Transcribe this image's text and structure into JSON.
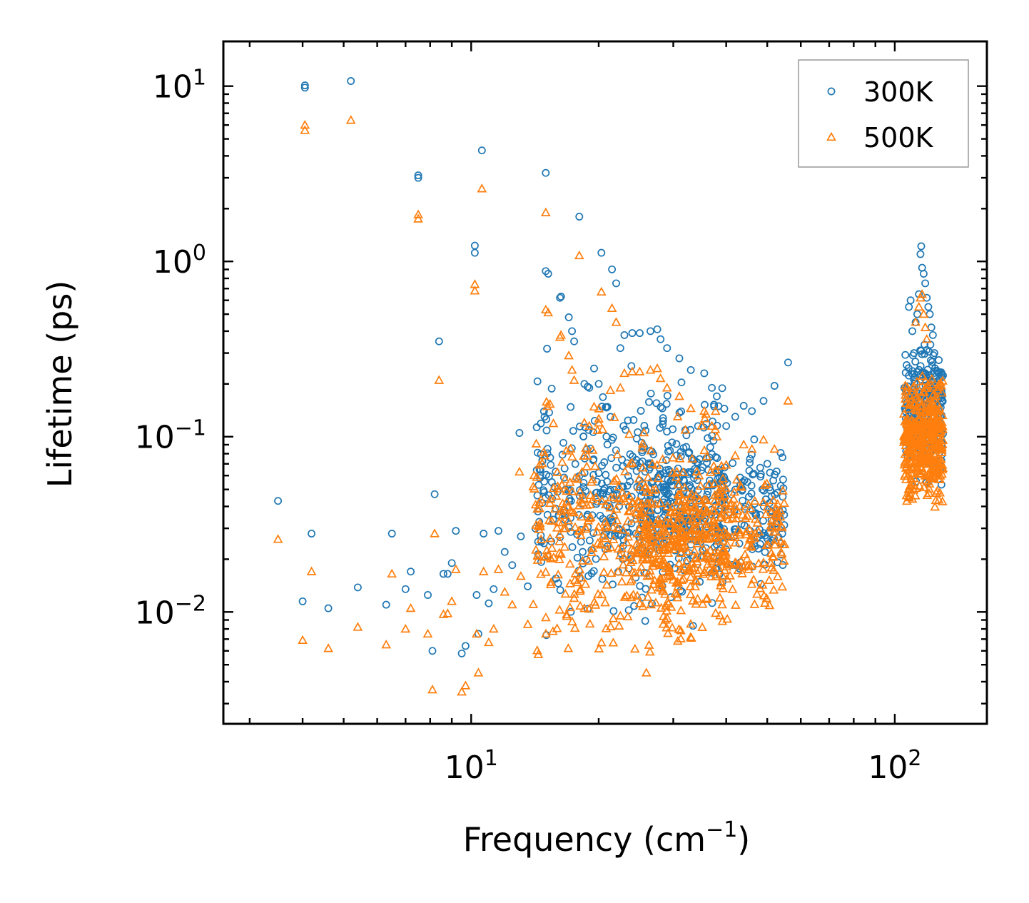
{
  "chart_data": {
    "type": "scatter",
    "xscale": "log",
    "yscale": "log",
    "xlim": [
      2.6,
      165
    ],
    "ylim": [
      0.0023,
      18
    ],
    "xlabel": "Frequency (cm",
    "xlabel_sup": "−1",
    "xlabel_suffix": ")",
    "ylabel": "Lifetime (ps)",
    "x_ticks": [
      {
        "value": 10,
        "base": "10",
        "exp": "1"
      },
      {
        "value": 100,
        "base": "10",
        "exp": "2"
      }
    ],
    "y_ticks": [
      {
        "value": 10,
        "base": "10",
        "exp": "1"
      },
      {
        "value": 1,
        "base": "10",
        "exp": "0"
      },
      {
        "value": 0.1,
        "base": "10",
        "exp": "−1"
      },
      {
        "value": 0.01,
        "base": "10",
        "exp": "−2"
      }
    ],
    "legend_position": "top-right",
    "series": [
      {
        "name": "300K",
        "marker": "circle",
        "color": "#1f77b4",
        "points": [
          [
            3.5,
            0.043
          ],
          [
            4.0,
            0.0115
          ],
          [
            4.05,
            9.8
          ],
          [
            4.05,
            10.1
          ],
          [
            4.2,
            0.028
          ],
          [
            4.6,
            0.0105
          ],
          [
            5.2,
            10.7
          ],
          [
            5.4,
            0.0138
          ],
          [
            6.3,
            0.011
          ],
          [
            6.5,
            0.028
          ],
          [
            7.0,
            0.0135
          ],
          [
            7.2,
            0.017
          ],
          [
            7.5,
            3.0
          ],
          [
            7.5,
            3.1
          ],
          [
            7.9,
            0.0125
          ],
          [
            8.1,
            0.006
          ],
          [
            8.2,
            0.047
          ],
          [
            8.4,
            0.35
          ],
          [
            8.6,
            0.0165
          ],
          [
            8.8,
            0.0165
          ],
          [
            9.0,
            0.019
          ],
          [
            9.2,
            0.029
          ],
          [
            9.5,
            0.0058
          ],
          [
            9.7,
            0.0064
          ],
          [
            10.2,
            1.12
          ],
          [
            10.2,
            1.23
          ],
          [
            10.3,
            0.0125
          ],
          [
            10.4,
            0.0075
          ],
          [
            10.6,
            4.3
          ],
          [
            10.7,
            0.028
          ],
          [
            11.0,
            0.0112
          ],
          [
            11.3,
            0.0135
          ],
          [
            11.6,
            0.029
          ],
          [
            12.0,
            0.022
          ],
          [
            12.5,
            0.0185
          ],
          [
            13.0,
            0.105
          ],
          [
            13.1,
            0.027
          ],
          [
            13.6,
            0.014
          ],
          [
            14.5,
            0.065
          ],
          [
            14.9,
            0.13
          ],
          [
            15.0,
            3.2
          ],
          [
            15.0,
            0.88
          ],
          [
            15.2,
            0.85
          ],
          [
            15.5,
            0.055
          ],
          [
            16.2,
            0.62
          ],
          [
            16.3,
            0.63
          ],
          [
            16.7,
            0.05
          ],
          [
            17.0,
            0.48
          ],
          [
            17.3,
            0.4
          ],
          [
            17.5,
            0.35
          ],
          [
            18.0,
            1.8
          ],
          [
            18.5,
            0.2
          ],
          [
            19.0,
            0.19
          ],
          [
            19.5,
            0.245
          ],
          [
            20.0,
            0.2
          ],
          [
            20.3,
            1.12
          ],
          [
            21.5,
            0.9
          ],
          [
            22.0,
            0.75
          ],
          [
            22.5,
            0.32
          ],
          [
            23.0,
            0.38
          ],
          [
            24.0,
            0.39
          ],
          [
            25.0,
            0.39
          ],
          [
            26.5,
            0.4
          ],
          [
            27.5,
            0.41
          ],
          [
            28.0,
            0.36
          ],
          [
            29.0,
            0.32
          ],
          [
            31.0,
            0.28
          ],
          [
            33.0,
            0.24
          ],
          [
            35.5,
            0.23
          ],
          [
            37.0,
            0.19
          ],
          [
            38.0,
            0.17
          ],
          [
            40.0,
            0.115
          ],
          [
            42.0,
            0.13
          ],
          [
            44.0,
            0.15
          ],
          [
            46.0,
            0.14
          ],
          [
            49.0,
            0.16
          ],
          [
            52.0,
            0.195
          ],
          [
            56.0,
            0.265
          ],
          [
            108,
            0.55
          ],
          [
            109,
            0.6
          ],
          [
            110,
            0.4
          ],
          [
            111,
            0.3
          ],
          [
            112,
            0.45
          ],
          [
            113,
            0.5
          ],
          [
            114,
            0.65
          ],
          [
            115,
            1.1
          ],
          [
            115.5,
            1.22
          ],
          [
            116,
            0.92
          ],
          [
            117,
            0.85
          ],
          [
            118,
            0.75
          ],
          [
            119,
            0.62
          ],
          [
            120,
            0.55
          ],
          [
            121,
            0.5
          ],
          [
            122,
            0.42
          ],
          [
            123,
            0.38
          ],
          [
            124,
            0.3
          ],
          [
            125,
            0.22
          ],
          [
            126,
            0.18
          ],
          [
            127,
            0.15
          ],
          [
            128,
            0.12
          ]
        ],
        "clusters": [
          {
            "xr": [
              14,
              40
            ],
            "yr": [
              0.006,
              0.35
            ],
            "n": 420,
            "seed": 11
          },
          {
            "xr": [
              25,
              55
            ],
            "yr": [
              0.012,
              0.12
            ],
            "n": 320,
            "seed": 12
          },
          {
            "xr": [
              105,
              130
            ],
            "yr": [
              0.045,
              0.45
            ],
            "n": 260,
            "seed": 13
          }
        ]
      },
      {
        "name": "500K",
        "marker": "triangle",
        "color": "#ff7f0e",
        "points": [
          [
            3.5,
            0.026
          ],
          [
            4.0,
            0.0069
          ],
          [
            4.05,
            5.6
          ],
          [
            4.05,
            6.0
          ],
          [
            4.2,
            0.017
          ],
          [
            4.6,
            0.0062
          ],
          [
            5.2,
            6.4
          ],
          [
            5.4,
            0.0082
          ],
          [
            6.3,
            0.0065
          ],
          [
            6.5,
            0.0165
          ],
          [
            7.0,
            0.008
          ],
          [
            7.2,
            0.0105
          ],
          [
            7.5,
            1.75
          ],
          [
            7.5,
            1.85
          ],
          [
            7.9,
            0.0075
          ],
          [
            8.1,
            0.0036
          ],
          [
            8.2,
            0.028
          ],
          [
            8.4,
            0.21
          ],
          [
            8.6,
            0.0097
          ],
          [
            8.8,
            0.0098
          ],
          [
            9.0,
            0.0115
          ],
          [
            9.2,
            0.0175
          ],
          [
            9.5,
            0.0035
          ],
          [
            9.7,
            0.0038
          ],
          [
            10.2,
            0.68
          ],
          [
            10.2,
            0.74
          ],
          [
            10.3,
            0.0075
          ],
          [
            10.4,
            0.0045
          ],
          [
            10.6,
            2.6
          ],
          [
            10.7,
            0.017
          ],
          [
            11.0,
            0.0067
          ],
          [
            11.3,
            0.008
          ],
          [
            11.6,
            0.0175
          ],
          [
            12.0,
            0.013
          ],
          [
            12.5,
            0.011
          ],
          [
            13.0,
            0.063
          ],
          [
            13.1,
            0.016
          ],
          [
            13.6,
            0.0085
          ],
          [
            14.5,
            0.039
          ],
          [
            14.9,
            0.078
          ],
          [
            15.0,
            1.9
          ],
          [
            15.0,
            0.53
          ],
          [
            15.2,
            0.51
          ],
          [
            15.5,
            0.033
          ],
          [
            16.2,
            0.37
          ],
          [
            16.3,
            0.38
          ],
          [
            16.7,
            0.03
          ],
          [
            17.0,
            0.29
          ],
          [
            17.3,
            0.24
          ],
          [
            17.5,
            0.21
          ],
          [
            18.0,
            1.08
          ],
          [
            18.5,
            0.12
          ],
          [
            19.0,
            0.115
          ],
          [
            19.5,
            0.148
          ],
          [
            20.0,
            0.12
          ],
          [
            20.3,
            0.67
          ],
          [
            21.5,
            0.54
          ],
          [
            22.0,
            0.45
          ],
          [
            22.5,
            0.19
          ],
          [
            23.0,
            0.23
          ],
          [
            24.0,
            0.235
          ],
          [
            25.0,
            0.235
          ],
          [
            26.5,
            0.24
          ],
          [
            27.5,
            0.245
          ],
          [
            28.0,
            0.215
          ],
          [
            29.0,
            0.19
          ],
          [
            31.0,
            0.17
          ],
          [
            33.0,
            0.145
          ],
          [
            35.5,
            0.14
          ],
          [
            37.0,
            0.115
          ],
          [
            38.0,
            0.1
          ],
          [
            40.0,
            0.069
          ],
          [
            42.0,
            0.078
          ],
          [
            44.0,
            0.09
          ],
          [
            46.0,
            0.085
          ],
          [
            49.0,
            0.096
          ],
          [
            52.0,
            0.085
          ],
          [
            56.0,
            0.16
          ],
          [
            112,
            0.45
          ],
          [
            114,
            0.55
          ],
          [
            115,
            0.62
          ],
          [
            116,
            0.65
          ],
          [
            117,
            0.5
          ],
          [
            118,
            0.42
          ],
          [
            119,
            0.36
          ]
        ],
        "clusters": [
          {
            "xr": [
              14,
              40
            ],
            "yr": [
              0.0035,
              0.21
            ],
            "n": 460,
            "seed": 21
          },
          {
            "xr": [
              25,
              55
            ],
            "yr": [
              0.008,
              0.08
            ],
            "n": 340,
            "seed": 22
          },
          {
            "xr": [
              105,
              130
            ],
            "yr": [
              0.033,
              0.28
            ],
            "n": 420,
            "seed": 23
          }
        ]
      }
    ]
  }
}
